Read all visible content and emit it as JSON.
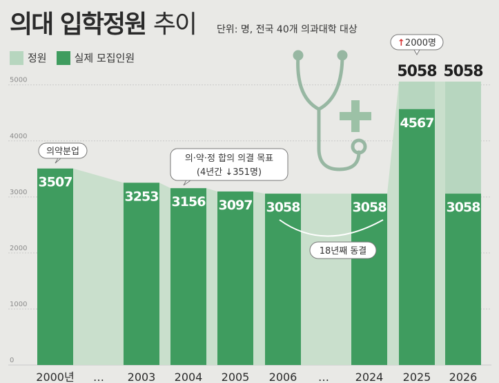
{
  "title": {
    "bold": "의대 입학정원",
    "light": "추이"
  },
  "unit_note": "단위: 명, 전국 40개 의과대학 대상",
  "legend": [
    {
      "label": "정원",
      "color": "#b7d6bf"
    },
    {
      "label": "실제 모집인원",
      "color": "#3f9c5f"
    }
  ],
  "annotations": {
    "first": "의약분업",
    "agreement_line1": "의·약·정 합의 의결 목표",
    "agreement_line2": "(4년간 ↓351명)",
    "freeze": "18년째 동결",
    "increase": "↑2000명"
  },
  "chart_data": {
    "type": "bar",
    "categories": [
      "2000년",
      "…",
      "2003",
      "2004",
      "2005",
      "2006",
      "…",
      "2024",
      "2025",
      "2026"
    ],
    "series": [
      {
        "name": "정원",
        "values": [
          3507,
          null,
          3253,
          3156,
          3097,
          3058,
          null,
          3058,
          5058,
          5058
        ]
      },
      {
        "name": "실제 모집인원",
        "values": [
          3507,
          null,
          3253,
          3156,
          3097,
          3058,
          null,
          3058,
          4567,
          3058
        ]
      }
    ],
    "bar_labels": [
      "3507",
      "",
      "3253",
      "3156",
      "3097",
      "3058",
      "",
      "3058",
      "4567",
      "3058"
    ],
    "top_labels": [
      "",
      "",
      "",
      "",
      "",
      "",
      "",
      "",
      "5058",
      "5058"
    ],
    "y_ticks": [
      0,
      1000,
      2000,
      3000,
      4000,
      5000
    ],
    "ylim": [
      0,
      5200
    ],
    "colors": {
      "quota": "#b7d6bf",
      "actual": "#3f9c5f",
      "gap_area": "#c9dfcc",
      "grid": "#c9c9c9"
    }
  }
}
